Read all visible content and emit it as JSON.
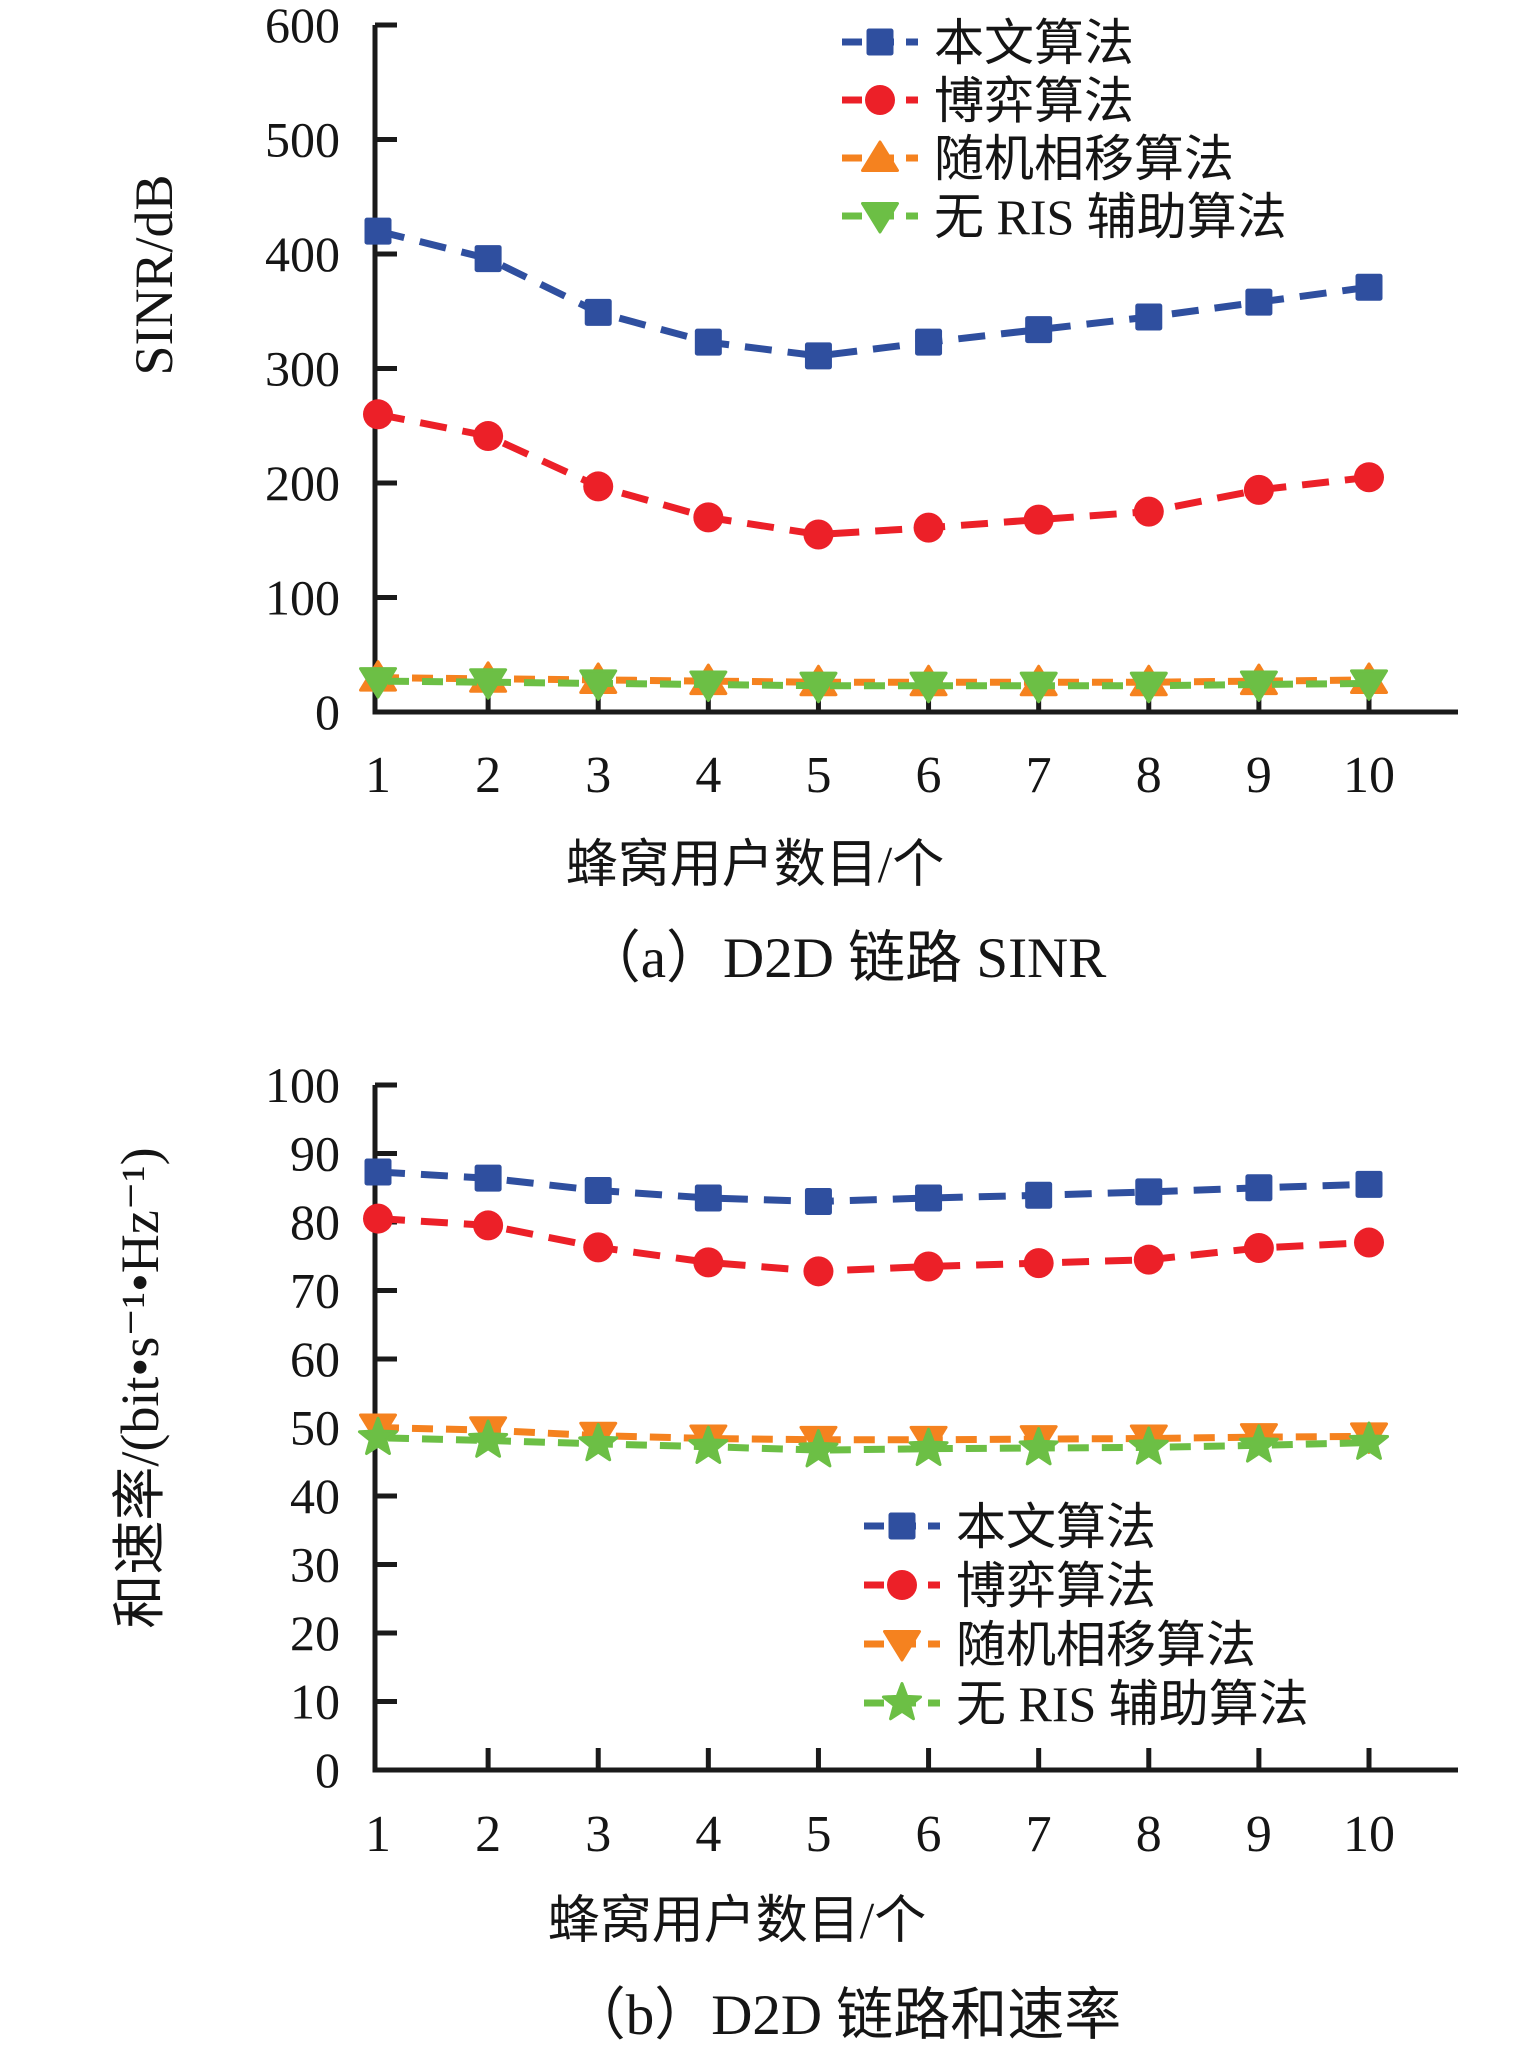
{
  "figure": {
    "background": "#ffffff",
    "text_color": "#151515"
  },
  "chart_data": [
    {
      "id": "a",
      "type": "line",
      "caption": "（a）D2D 链路 SINR",
      "xlabel": "蜂窝用户数目/个",
      "ylabel": "SINR/dB",
      "x": [
        1,
        2,
        3,
        4,
        5,
        6,
        7,
        8,
        9,
        10
      ],
      "ylim": [
        0,
        600
      ],
      "ytick_step": 100,
      "grid": false,
      "legend_position": "top-right-inside",
      "series": [
        {
          "name": "本文算法",
          "color": "#2f4f9f",
          "marker": "square",
          "line": "dashed",
          "values": [
            420,
            396,
            349,
            323,
            311,
            323,
            334,
            345,
            358,
            371
          ]
        },
        {
          "name": "博弈算法",
          "color": "#ec2028",
          "marker": "circle",
          "line": "dashed",
          "values": [
            260,
            241,
            197,
            170,
            155,
            161,
            168,
            175,
            194,
            205
          ]
        },
        {
          "name": "随机相移算法",
          "color": "#f5821f",
          "marker": "triangle-up",
          "line": "dashed",
          "values": [
            30,
            29,
            28,
            27,
            26,
            26,
            26,
            26,
            27,
            28
          ]
        },
        {
          "name": "无 RIS 辅助算法",
          "color": "#6cbf45",
          "marker": "triangle-down",
          "line": "dashed",
          "values": [
            27,
            26,
            25,
            24,
            23,
            23,
            23,
            23,
            24,
            25
          ]
        }
      ]
    },
    {
      "id": "b",
      "type": "line",
      "caption": "（b）D2D 链路和速率",
      "xlabel": "蜂窝用户数目/个",
      "ylabel": "和速率/(bit•s⁻¹•Hz⁻¹)",
      "x": [
        1,
        2,
        3,
        4,
        5,
        6,
        7,
        8,
        9,
        10
      ],
      "ylim": [
        0,
        100
      ],
      "ytick_step": 10,
      "grid": false,
      "legend_position": "lower-right-inside",
      "series": [
        {
          "name": "本文算法",
          "color": "#2f4f9f",
          "marker": "square",
          "line": "dashed",
          "values": [
            87.3,
            86.4,
            84.6,
            83.5,
            83.0,
            83.5,
            83.9,
            84.4,
            85.0,
            85.5
          ]
        },
        {
          "name": "博弈算法",
          "color": "#ec2028",
          "marker": "circle",
          "line": "dashed",
          "values": [
            80.5,
            79.5,
            76.3,
            74.1,
            72.8,
            73.5,
            74.0,
            74.5,
            76.2,
            77.0
          ]
        },
        {
          "name": "随机相移算法",
          "color": "#f5821f",
          "marker": "triangle-down",
          "line": "dashed",
          "values": [
            50.0,
            49.6,
            48.8,
            48.4,
            48.2,
            48.2,
            48.3,
            48.4,
            48.6,
            48.7
          ]
        },
        {
          "name": "无 RIS 辅助算法",
          "color": "#6cbf45",
          "marker": "star",
          "line": "dashed",
          "values": [
            48.5,
            48.1,
            47.6,
            47.2,
            46.7,
            46.9,
            47.0,
            47.1,
            47.4,
            47.8
          ]
        }
      ]
    }
  ]
}
